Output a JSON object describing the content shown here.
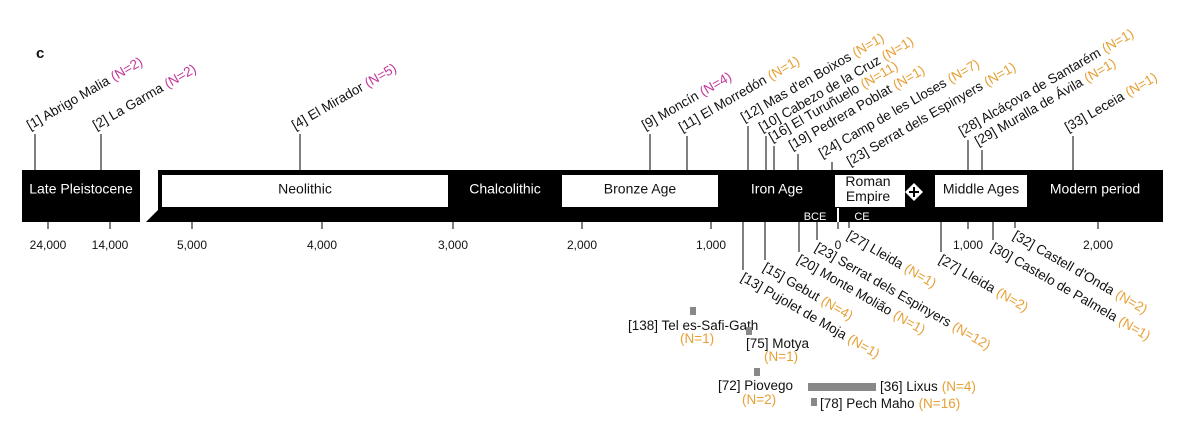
{
  "panel_label": "c",
  "periods": [
    [
      "Late Pleistocene"
    ],
    [
      "Neolithic"
    ],
    [
      "Chalcolithic"
    ],
    [
      "Bronze Age"
    ],
    [
      "Iron Age"
    ],
    [
      "Roman",
      "Empire"
    ],
    [
      "Middle Ages"
    ],
    [
      "Modern period"
    ]
  ],
  "axis_ticks": [
    "24,000",
    "14,000",
    "5,000",
    "4,000",
    "3,000",
    "2,000",
    "1,000",
    "0",
    "1,000",
    "2,000"
  ],
  "era_labels": [
    "BCE",
    "CE"
  ],
  "top_sites": [
    {
      "label": "[1] Abrigo Malia",
      "n": "(N=2)"
    },
    {
      "label": "[2] La Garma",
      "n": "(N=2)"
    },
    {
      "label": "[4] El Mirador",
      "n": "(N=5)"
    },
    {
      "label": "[9] Moncín",
      "n": "(N=4)"
    },
    {
      "label": "[11] El Morredón",
      "n": "(N=1)"
    },
    {
      "label": "[12] Mas d'en Boixos",
      "n": "(N=1)"
    },
    {
      "label": "[10] Cabezo de la Cruz",
      "n": "(N=1)"
    },
    {
      "label": "[16] El Turuñuelo",
      "n": "(N=11)"
    },
    {
      "label": "[19] Pedrera Poblat",
      "n": "(N=1)"
    },
    {
      "label": "[24] Camp de les Lloses",
      "n": "(N=7)"
    },
    {
      "label": "[23] Serrat dels Espinyers",
      "n": "(N=1)"
    },
    {
      "label": "[28] Alcáçova de Santarém",
      "n": "(N=1)"
    },
    {
      "label": "[29] Muralla de Ávila",
      "n": "(N=1)"
    },
    {
      "label": "[33] Leceia",
      "n": "(N=1)"
    }
  ],
  "bottom_sites": [
    {
      "label": "[27] Lleida",
      "n": "(N=1)"
    },
    {
      "label": "[23] Serrat dels Espinyers",
      "n": "(N=12)"
    },
    {
      "label": "[20] Monte Molião",
      "n": "(N=1)"
    },
    {
      "label": "[15] Gebut",
      "n": "(N=4)"
    },
    {
      "label": "[13] Pujolet de Moja",
      "n": "(N=1)"
    },
    {
      "label": "[27] Lleida",
      "n": "(N=2)"
    },
    {
      "label": "[30] Castelo de Palmela",
      "n": "(N=1)"
    },
    {
      "label": "[32] Castell d'Onda",
      "n": "(N=2)"
    }
  ],
  "gray_sites": [
    {
      "label": "[138] Tel es-Safi-Gath",
      "n": "(N=1)"
    },
    {
      "label": "[75] Motya",
      "n": "(N=1)"
    },
    {
      "label": "[72] Piovego",
      "n": "(N=2)"
    },
    {
      "label": "[36] Lixus",
      "n": "(N=4)"
    },
    {
      "label": "[78] Pech Maho",
      "n": "(N=16)"
    }
  ]
}
